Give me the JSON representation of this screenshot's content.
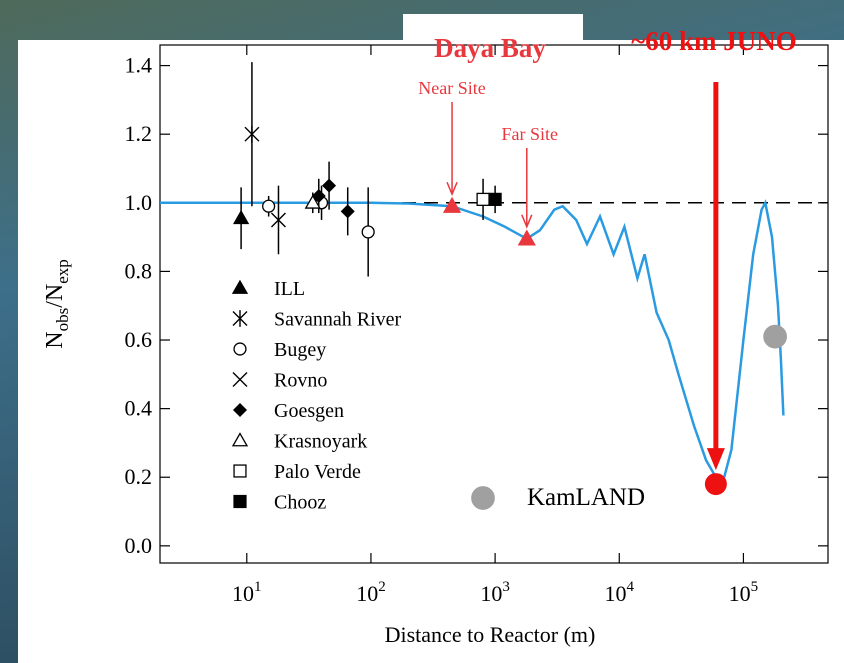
{
  "chart_data": {
    "type": "scatter",
    "x_label": "Distance to Reactor (m)",
    "y_label": {
      "main1": "N",
      "sub1": "obs",
      "main2": "/N",
      "sub2": "exp"
    },
    "log_x": true,
    "xlim": [
      2,
      480000
    ],
    "ylim": [
      -0.05,
      1.46
    ],
    "xticks": [
      {
        "value": 10,
        "base": "10",
        "exponent": "1"
      },
      {
        "value": 100,
        "base": "10",
        "exponent": "2"
      },
      {
        "value": 1000,
        "base": "10",
        "exponent": "3"
      },
      {
        "value": 10000,
        "base": "10",
        "exponent": "4"
      },
      {
        "value": 100000,
        "base": "10",
        "exponent": "5"
      }
    ],
    "yticks": [
      {
        "value": 0,
        "label": "0.0"
      },
      0.2,
      0.4,
      0.6,
      0.8,
      {
        "value": 1,
        "label": "1.0"
      },
      1.2,
      1.4
    ],
    "reference_y": 1,
    "series": [
      {
        "name": "ILL",
        "marker": "triangle",
        "color": "#000000",
        "x": [
          9
        ],
        "y": [
          0.955
        ],
        "err": [
          0.09
        ]
      },
      {
        "name": "Savannah River",
        "marker": "asterisk",
        "color": "#000000",
        "x": [
          11
        ],
        "y": [
          1.2
        ],
        "err": [
          0.21
        ]
      },
      {
        "name": "Bugey",
        "marker": "circle-open",
        "color": "#000000",
        "x": [
          15,
          40,
          95
        ],
        "y": [
          0.99,
          1.0,
          0.915
        ],
        "err": [
          0.03,
          0.05,
          0.13
        ]
      },
      {
        "name": "Rovno",
        "marker": "cross",
        "color": "#000000",
        "x": [
          18
        ],
        "y": [
          0.95
        ],
        "err": [
          0.1
        ]
      },
      {
        "name": "Goesgen",
        "marker": "diamond",
        "color": "#000000",
        "x": [
          38,
          46,
          65
        ],
        "y": [
          1.02,
          1.05,
          0.975
        ],
        "err": [
          0.05,
          0.07,
          0.07
        ]
      },
      {
        "name": "Krasnoyark",
        "marker": "triangle-open",
        "color": "#000000",
        "x": [
          34
        ],
        "y": [
          1.0
        ],
        "err": [
          0.03
        ]
      },
      {
        "name": "Palo Verde",
        "marker": "square-open",
        "color": "#000000",
        "x": [
          800
        ],
        "y": [
          1.01
        ],
        "err": [
          0.06
        ]
      },
      {
        "name": "Chooz",
        "marker": "square",
        "color": "#000000",
        "x": [
          1000
        ],
        "y": [
          1.01
        ],
        "err": [
          0.04
        ]
      },
      {
        "name": "KamLAND",
        "marker": "circle",
        "color": "#a0a0a0",
        "x": [
          180000
        ],
        "y": [
          0.61
        ]
      }
    ],
    "curve": {
      "color": "#2a9be0",
      "x": [
        2,
        100,
        200,
        450,
        800,
        1200,
        1800,
        2300,
        3000,
        3500,
        4500,
        5500,
        7000,
        9000,
        11000,
        14000,
        16000,
        20000,
        25000,
        30000,
        40000,
        50000,
        60000,
        70000,
        80000,
        100000,
        120000,
        140000,
        150000,
        170000,
        190000,
        200000,
        210000
      ],
      "y": [
        1.0,
        1.0,
        0.998,
        0.99,
        0.96,
        0.93,
        0.895,
        0.92,
        0.98,
        0.99,
        0.95,
        0.88,
        0.96,
        0.85,
        0.93,
        0.78,
        0.85,
        0.68,
        0.6,
        0.5,
        0.35,
        0.25,
        0.2,
        0.2,
        0.28,
        0.6,
        0.85,
        0.98,
        1.0,
        0.9,
        0.7,
        0.55,
        0.38
      ]
    },
    "daya_bay": {
      "name": "Daya Bay",
      "color": "#e8383d",
      "x": [
        450,
        1800
      ],
      "y": [
        0.99,
        0.895
      ],
      "point_labels": [
        "Near Site",
        "Far Site"
      ]
    },
    "juno": {
      "name": "~60 km JUNO",
      "color": "#ee1111",
      "x": [
        60000
      ],
      "y": [
        0.18
      ]
    }
  }
}
